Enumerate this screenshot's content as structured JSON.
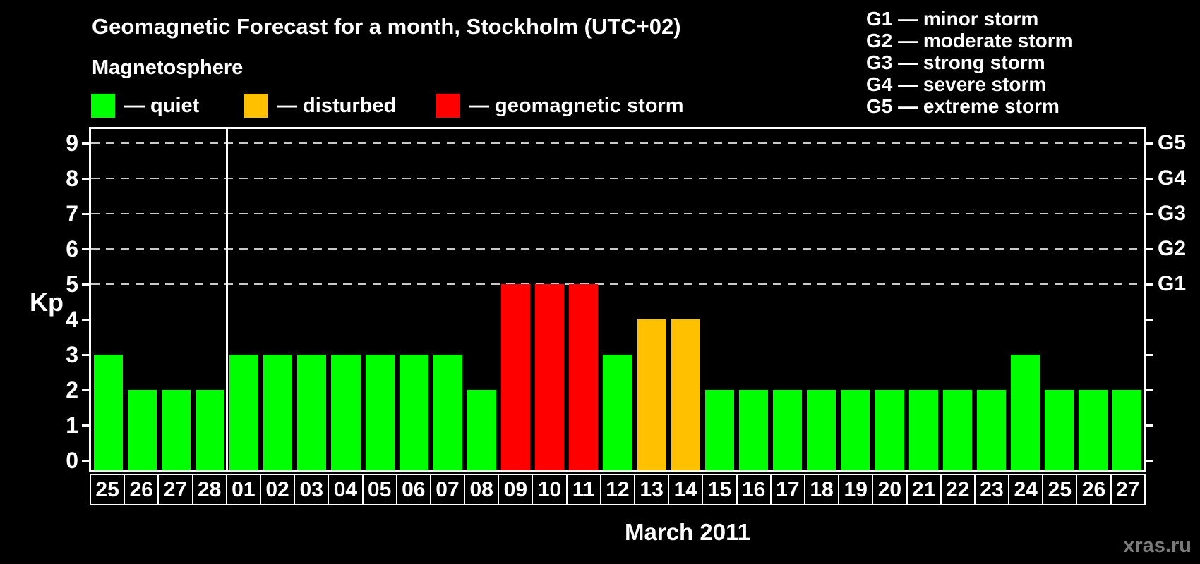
{
  "header": {
    "title": "Geomagnetic Forecast for a month, Stockholm (UTC+02)"
  },
  "magnetosphere_legend": {
    "title": "Magnetosphere",
    "items": [
      {
        "status": "quiet",
        "label": "— quiet",
        "color": "#00ff00"
      },
      {
        "status": "disturbed",
        "label": "— disturbed",
        "color": "#ffc000"
      },
      {
        "status": "storm",
        "label": "— geomagnetic storm",
        "color": "#ff0000"
      }
    ]
  },
  "g_scale_legend": {
    "items": [
      "G1 — minor storm",
      "G2 — moderate storm",
      "G3 — strong storm",
      "G4 — severe storm",
      "G5 — extreme storm"
    ]
  },
  "watermark": "xras.ru",
  "chart_data": {
    "type": "bar",
    "title": "Geomagnetic Forecast for a month, Stockholm (UTC+02)",
    "ylabel": "Kp",
    "xlabel": "March 2011",
    "ylim": [
      0,
      9.4
    ],
    "yticks": [
      0,
      1,
      2,
      3,
      4,
      5,
      6,
      7,
      8,
      9
    ],
    "gridlines": [
      5,
      6,
      7,
      8,
      9
    ],
    "grid": "dashed horizontal lines at Kp 5 through 9",
    "legend_position": "top",
    "right_axis": [
      {
        "kp": 5,
        "label": "G1"
      },
      {
        "kp": 6,
        "label": "G2"
      },
      {
        "kp": 7,
        "label": "G3"
      },
      {
        "kp": 8,
        "label": "G4"
      },
      {
        "kp": 9,
        "label": "G5"
      }
    ],
    "separator_after_index": 3,
    "categories": [
      "25",
      "26",
      "27",
      "28",
      "01",
      "02",
      "03",
      "04",
      "05",
      "06",
      "07",
      "08",
      "09",
      "10",
      "11",
      "12",
      "13",
      "14",
      "15",
      "16",
      "17",
      "18",
      "19",
      "20",
      "21",
      "22",
      "23",
      "24",
      "25",
      "26",
      "27"
    ],
    "values": [
      3,
      2,
      2,
      2,
      3,
      3,
      3,
      3,
      3,
      3,
      3,
      2,
      5,
      5,
      5,
      3,
      4,
      4,
      2,
      2,
      2,
      2,
      2,
      2,
      2,
      2,
      2,
      3,
      2,
      2,
      2
    ],
    "statuses": [
      "quiet",
      "quiet",
      "quiet",
      "quiet",
      "quiet",
      "quiet",
      "quiet",
      "quiet",
      "quiet",
      "quiet",
      "quiet",
      "quiet",
      "storm",
      "storm",
      "storm",
      "quiet",
      "disturbed",
      "disturbed",
      "quiet",
      "quiet",
      "quiet",
      "quiet",
      "quiet",
      "quiet",
      "quiet",
      "quiet",
      "quiet",
      "quiet",
      "quiet",
      "quiet",
      "quiet"
    ],
    "status_colors": {
      "quiet": "#00ff00",
      "disturbed": "#ffc000",
      "storm": "#ff0000"
    }
  }
}
